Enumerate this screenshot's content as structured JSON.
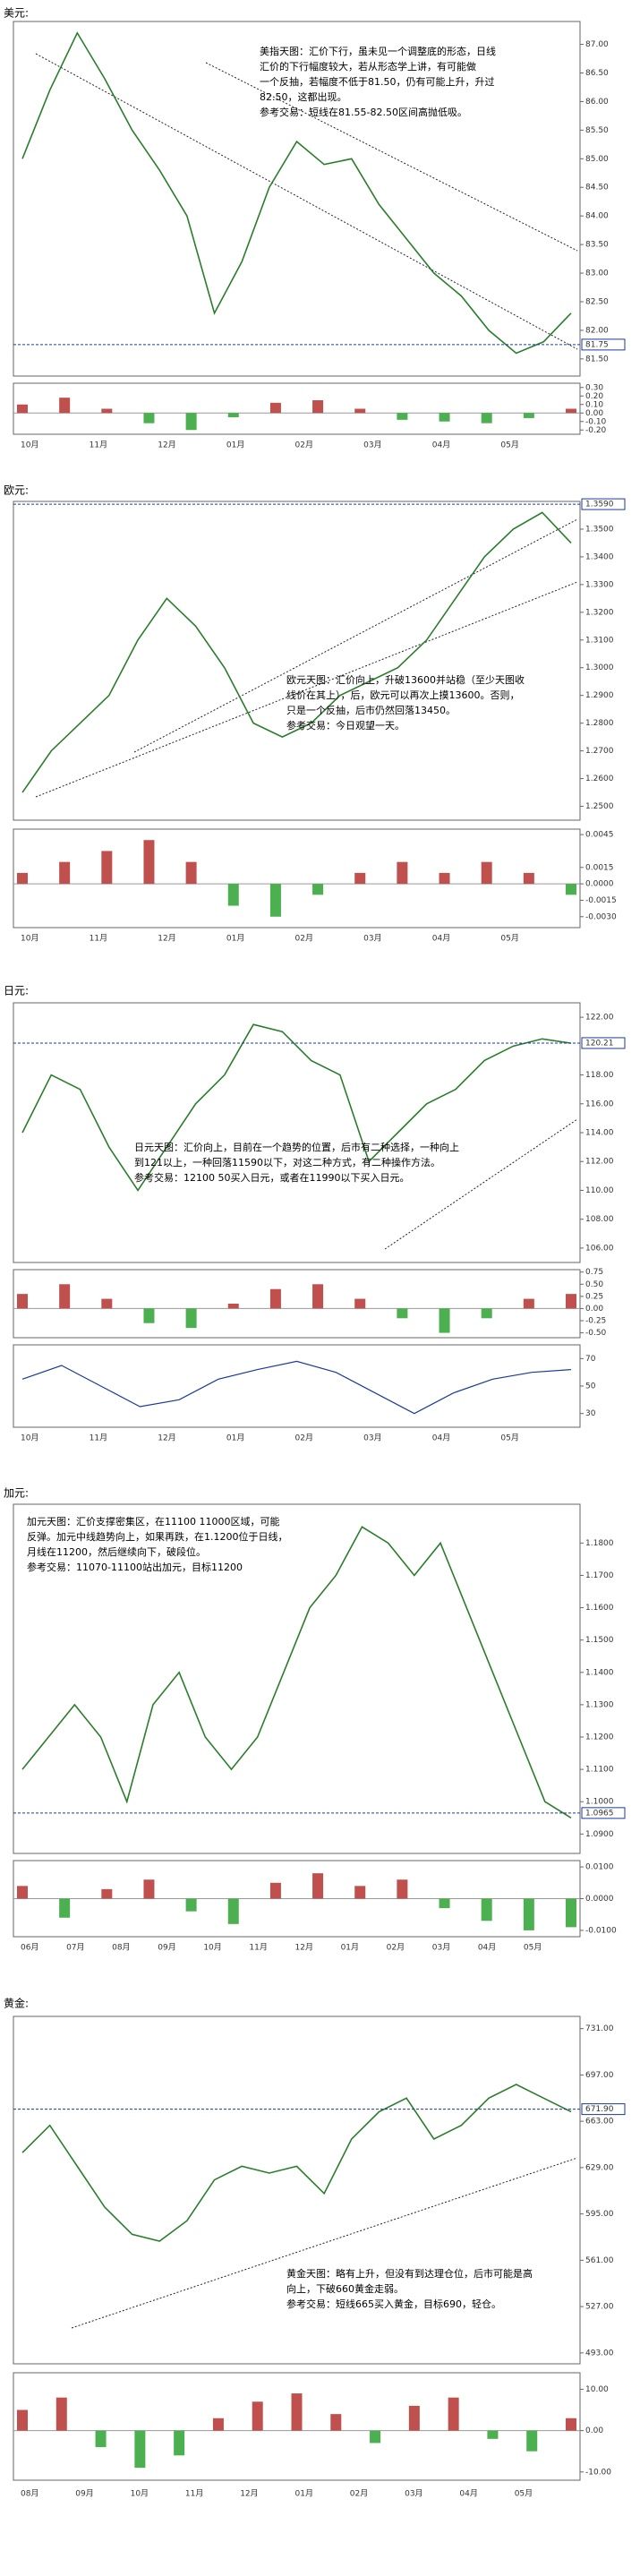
{
  "chart_data": [
    {
      "type": "line",
      "title": "美元:",
      "color": "#2a7d2a",
      "annotation": [
        "美指天图：汇价下行，虽未见一个调整底的形态，日线",
        "汇价的下行幅度较大，若从形态学上讲，有可能做",
        "一个反抽，若幅度不低于81.50，仍有可能上升，升过",
        "82.50，这都出现。",
        "参考交易：短线在81.55-82.50区间高抛低吸。"
      ],
      "xticks": [
        "10月",
        "11月",
        "12月",
        "01月",
        "02月",
        "03月",
        "04月",
        "05月"
      ],
      "values": [
        85.0,
        86.2,
        87.2,
        86.4,
        85.5,
        84.8,
        84.0,
        82.3,
        83.2,
        84.5,
        85.3,
        84.9,
        85.0,
        84.2,
        83.6,
        83.0,
        82.6,
        82.0,
        81.6,
        81.8,
        82.3
      ],
      "ylim": [
        81.2,
        87.4
      ],
      "yticks": [
        {
          "value": 81.5,
          "label": "81.50"
        },
        {
          "value": 82,
          "label": "82.00"
        },
        {
          "value": 82.5,
          "label": "82.50"
        },
        {
          "value": 83,
          "label": "83.00"
        },
        {
          "value": 83.5,
          "label": "83.50"
        },
        {
          "value": 84,
          "label": "84.00"
        },
        {
          "value": 84.5,
          "label": "84.50"
        },
        {
          "value": 85,
          "label": "85.00"
        },
        {
          "value": 85.5,
          "label": "85.50"
        },
        {
          "value": 86,
          "label": "86.00"
        },
        {
          "value": 86.5,
          "label": "86.50"
        },
        {
          "value": 87,
          "label": "87.00"
        }
      ],
      "current": {
        "value": 81.75,
        "label": "81.75"
      },
      "indicator": {
        "ylim": [
          -0.25,
          0.35
        ],
        "yticks": [
          {
            "value": 0.3,
            "label": "0.30"
          },
          {
            "value": 0.2,
            "label": "0.20"
          },
          {
            "value": 0.1,
            "label": "0.10"
          },
          {
            "value": 0,
            "label": "0.00"
          },
          {
            "value": -0.1,
            "label": "-0.10"
          },
          {
            "value": -0.2,
            "label": "-0.20"
          }
        ],
        "values": [
          0.1,
          0.18,
          0.05,
          -0.12,
          -0.2,
          -0.05,
          0.12,
          0.15,
          0.05,
          -0.08,
          -0.1,
          -0.12,
          -0.06,
          0.05
        ]
      }
    },
    {
      "type": "line",
      "title": "欧元:",
      "color": "#2a7d2a",
      "annotation": [
        "欧元天图：汇价向上，升破13600并站稳（至少天图收",
        "线价在其上），后，欧元可以再次上摸13600。否则，",
        "只是一个反抽，后市仍然回落13450。",
        "参考交易：今日观望一天。"
      ],
      "xticks": [
        "10月",
        "11月",
        "12月",
        "01月",
        "02月",
        "03月",
        "04月",
        "05月"
      ],
      "values": [
        1.255,
        1.27,
        1.28,
        1.29,
        1.31,
        1.325,
        1.315,
        1.3,
        1.28,
        1.275,
        1.28,
        1.29,
        1.295,
        1.3,
        1.31,
        1.325,
        1.34,
        1.35,
        1.356,
        1.345
      ],
      "ylim": [
        1.245,
        1.36
      ],
      "yticks": [
        {
          "value": 1.25,
          "label": "1.2500"
        },
        {
          "value": 1.26,
          "label": "1.2600"
        },
        {
          "value": 1.27,
          "label": "1.2700"
        },
        {
          "value": 1.28,
          "label": "1.2800"
        },
        {
          "value": 1.29,
          "label": "1.2900"
        },
        {
          "value": 1.3,
          "label": "1.3000"
        },
        {
          "value": 1.31,
          "label": "1.3100"
        },
        {
          "value": 1.32,
          "label": "1.3200"
        },
        {
          "value": 1.33,
          "label": "1.3300"
        },
        {
          "value": 1.34,
          "label": "1.3400"
        },
        {
          "value": 1.35,
          "label": "1.3500"
        }
      ],
      "current": {
        "value": 1.359,
        "label": "1.3590"
      },
      "indicator": {
        "ylim": [
          -0.004,
          0.005
        ],
        "yticks": [
          {
            "value": 0.0045,
            "label": "0.0045"
          },
          {
            "value": 0.0015,
            "label": "0.0015"
          },
          {
            "value": 0,
            "label": "0.0000"
          },
          {
            "value": -0.0015,
            "label": "-0.0015"
          },
          {
            "value": -0.003,
            "label": "-0.0030"
          }
        ],
        "values": [
          0.001,
          0.002,
          0.003,
          0.004,
          0.002,
          -0.002,
          -0.003,
          -0.001,
          0.001,
          0.002,
          0.001,
          0.002,
          0.001,
          -0.001
        ]
      }
    },
    {
      "type": "line",
      "title": "日元:",
      "color": "#2a7d2a",
      "annotation": [
        "日元天图：汇价向上，目前在一个趋势的位置，后市有二种选择，一种向上",
        "到121以上，一种回落11590以下，对这二种方式，有二种操作方法。",
        "参考交易：12100 50买入日元，或者在11990以下买入日元。"
      ],
      "xticks": [
        "10月",
        "11月",
        "12月",
        "01月",
        "02月",
        "03月",
        "04月",
        "05月"
      ],
      "values": [
        114,
        118,
        117,
        113,
        110,
        113,
        116,
        118,
        121.5,
        121,
        119,
        118,
        112,
        114,
        116,
        117,
        119,
        120,
        120.5,
        120.2
      ],
      "ylim": [
        105,
        123
      ],
      "yticks": [
        {
          "value": 106,
          "label": "106.00"
        },
        {
          "value": 108,
          "label": "108.00"
        },
        {
          "value": 110,
          "label": "110.00"
        },
        {
          "value": 112,
          "label": "112.00"
        },
        {
          "value": 114,
          "label": "114.00"
        },
        {
          "value": 116,
          "label": "116.00"
        },
        {
          "value": 118,
          "label": "118.00"
        },
        {
          "value": 122,
          "label": "122.00"
        }
      ],
      "current": {
        "value": 120.21,
        "label": "120.21"
      },
      "indicator": {
        "ylim": [
          -0.6,
          0.8
        ],
        "yticks": [
          {
            "value": 0.75,
            "label": "0.75"
          },
          {
            "value": 0.5,
            "label": "0.50"
          },
          {
            "value": 0.25,
            "label": "0.25"
          },
          {
            "value": 0,
            "label": "0.00"
          },
          {
            "value": -0.25,
            "label": "-0.25"
          },
          {
            "value": -0.5,
            "label": "-0.50"
          }
        ],
        "values": [
          0.3,
          0.5,
          0.2,
          -0.3,
          -0.4,
          0.1,
          0.4,
          0.5,
          0.2,
          -0.2,
          -0.5,
          -0.2,
          0.2,
          0.3
        ]
      },
      "rsi": {
        "ylim": [
          20,
          80
        ],
        "yticks": [
          30,
          50,
          70
        ],
        "values": [
          55,
          65,
          50,
          35,
          40,
          55,
          62,
          68,
          60,
          45,
          30,
          45,
          55,
          60,
          62
        ]
      }
    },
    {
      "type": "line",
      "title": "加元:",
      "color": "#2a7d2a",
      "annotation": [
        "加元天图：汇价支撑密集区，在11100 11000区域，可能",
        "反弹。加元中线趋势向上，如果再跌，在1.1200位于日线，",
        "月线在11200，然后继续向下，破段位。",
        "参考交易：11070-11100站出加元，目标11200"
      ],
      "xticks": [
        "06月",
        "07月",
        "08月",
        "09月",
        "10月",
        "11月",
        "12月",
        "01月",
        "02月",
        "03月",
        "04月",
        "05月"
      ],
      "values": [
        1.11,
        1.12,
        1.13,
        1.12,
        1.1,
        1.13,
        1.14,
        1.12,
        1.11,
        1.12,
        1.14,
        1.16,
        1.17,
        1.185,
        1.18,
        1.17,
        1.18,
        1.16,
        1.14,
        1.12,
        1.1,
        1.095
      ],
      "ylim": [
        1.084,
        1.192
      ],
      "yticks": [
        {
          "value": 1.09,
          "label": "1.0900"
        },
        {
          "value": 1.1,
          "label": "1.1000"
        },
        {
          "value": 1.11,
          "label": "1.1100"
        },
        {
          "value": 1.12,
          "label": "1.1200"
        },
        {
          "value": 1.13,
          "label": "1.1300"
        },
        {
          "value": 1.14,
          "label": "1.1400"
        },
        {
          "value": 1.15,
          "label": "1.1500"
        },
        {
          "value": 1.16,
          "label": "1.1600"
        },
        {
          "value": 1.17,
          "label": "1.1700"
        },
        {
          "value": 1.18,
          "label": "1.1800"
        }
      ],
      "current": {
        "value": 1.0965,
        "label": "1.0965"
      },
      "indicator": {
        "ylim": [
          -0.012,
          0.012
        ],
        "yticks": [
          {
            "value": 0.01,
            "label": "0.0100"
          },
          {
            "value": 0,
            "label": "0.0000"
          },
          {
            "value": -0.01,
            "label": "-0.0100"
          }
        ],
        "values": [
          0.004,
          -0.006,
          0.003,
          0.006,
          -0.004,
          -0.008,
          0.005,
          0.008,
          0.004,
          0.006,
          -0.003,
          -0.007,
          -0.01,
          -0.009
        ]
      }
    },
    {
      "type": "line",
      "title": "黄金:",
      "color": "#2a7d2a",
      "annotation": [
        "黄金天图：略有上升，但没有到达理仓位，后市可能是高",
        "向上，下破660黄金走弱。",
        "参考交易：短线665买入黄金，目标690，轻仓。"
      ],
      "xticks": [
        "08月",
        "09月",
        "10月",
        "11月",
        "12月",
        "01月",
        "02月",
        "03月",
        "04月",
        "05月"
      ],
      "values": [
        640,
        660,
        630,
        600,
        580,
        575,
        590,
        620,
        630,
        625,
        630,
        610,
        650,
        670,
        680,
        650,
        660,
        680,
        690,
        680,
        670
      ],
      "ylim": [
        485,
        740
      ],
      "yticks": [
        {
          "value": 493,
          "label": "493.00"
        },
        {
          "value": 527,
          "label": "527.00"
        },
        {
          "value": 561,
          "label": "561.00"
        },
        {
          "value": 595,
          "label": "595.00"
        },
        {
          "value": 629,
          "label": "629.00"
        },
        {
          "value": 663,
          "label": "663.00"
        },
        {
          "value": 697,
          "label": "697.00"
        },
        {
          "value": 731,
          "label": "731.00"
        }
      ],
      "current": {
        "value": 671.9,
        "label": "671.90"
      },
      "indicator": {
        "ylim": [
          -12,
          14
        ],
        "yticks": [
          {
            "value": 10,
            "label": "10.00"
          },
          {
            "value": 0,
            "label": "0.00"
          },
          {
            "value": -10,
            "label": "-10.00"
          }
        ],
        "values": [
          5,
          8,
          -4,
          -9,
          -6,
          3,
          7,
          9,
          4,
          -3,
          6,
          8,
          -2,
          -5,
          3
        ]
      }
    }
  ]
}
